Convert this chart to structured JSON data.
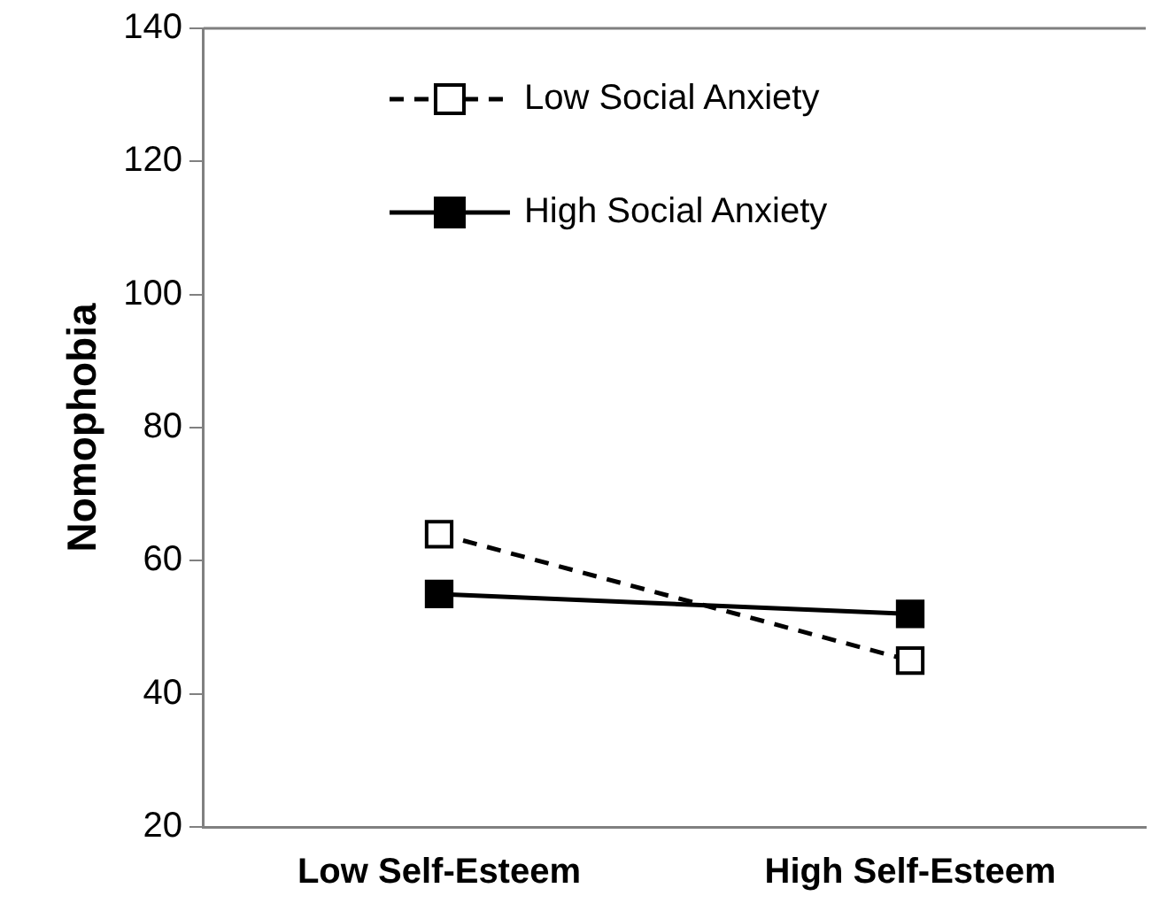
{
  "chart_data": {
    "type": "line",
    "ylabel": "Nomophobia",
    "categories": [
      "Low Self-Esteem",
      "High Self-Esteem"
    ],
    "series": [
      {
        "name": "Low Social Anxiety",
        "color": "#000000",
        "values": [
          64,
          45
        ],
        "line_style": "dashed"
      },
      {
        "name": "High Social Anxiety",
        "color": "#000000",
        "values": [
          55,
          52
        ],
        "line_style": "solid"
      }
    ],
    "ylim": [
      20,
      140
    ],
    "yticks": [
      20,
      40,
      60,
      80,
      100,
      120,
      140
    ],
    "grid": false,
    "legend": "top",
    "marker": "square"
  }
}
